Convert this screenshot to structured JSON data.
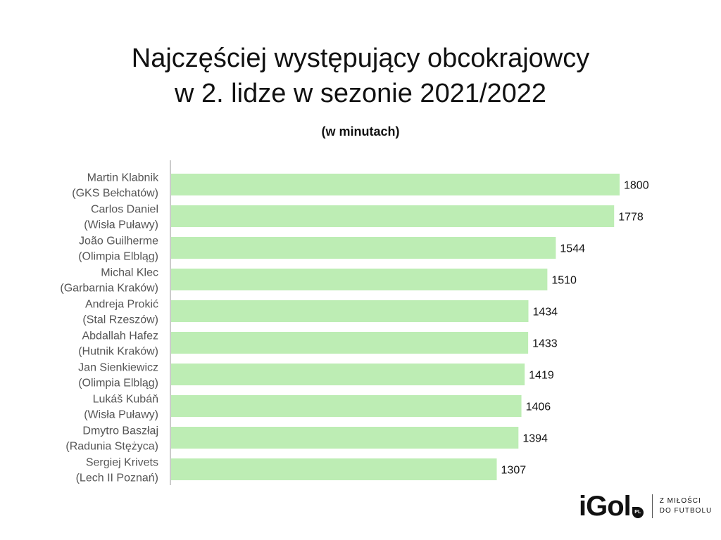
{
  "chart_data": {
    "type": "bar",
    "orientation": "horizontal",
    "title": [
      "Najczęściej występujący obcokrajowcy",
      "w 2. lidze w sezonie 2021/2022"
    ],
    "subtitle": "(w minutach)",
    "categories": [
      [
        "Martin Klabnik",
        "(GKS Bełchatów)"
      ],
      [
        "Carlos Daniel",
        "(Wisła Puławy)"
      ],
      [
        "João Guilherme",
        "(Olimpia Elbląg)"
      ],
      [
        "Michal Klec",
        "(Garbarnia Kraków)"
      ],
      [
        "Andreja Prokić",
        "(Stal Rzeszów)"
      ],
      [
        "Abdallah Hafez",
        "(Hutnik Kraków)"
      ],
      [
        "Jan Sienkiewicz",
        "(Olimpia Elbląg)"
      ],
      [
        "Lukáš Kubáň",
        "(Wisła Puławy)"
      ],
      [
        "Dmytro Baszłaj",
        "(Radunia Stężyca)"
      ],
      [
        "Sergiej Krivets",
        "(Lech II Poznań)"
      ]
    ],
    "values": [
      1800,
      1778,
      1544,
      1510,
      1434,
      1433,
      1419,
      1406,
      1394,
      1307
    ],
    "xlim": [
      0,
      1800
    ],
    "grid": false,
    "bar_color": "#bdedb4",
    "axis_color": "#cccccc"
  },
  "logo": {
    "word": "iGol",
    "badge": "PL",
    "tagline": [
      "Z MIŁOŚCI",
      "DO FUTBOLU"
    ]
  }
}
